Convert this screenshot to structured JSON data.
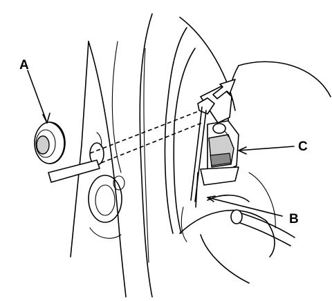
{
  "callouts": {
    "a": "A",
    "b": "B",
    "c": "C"
  },
  "colors": {
    "line": "#000000",
    "background": "#ffffff",
    "shade": "#cfcfcf"
  }
}
